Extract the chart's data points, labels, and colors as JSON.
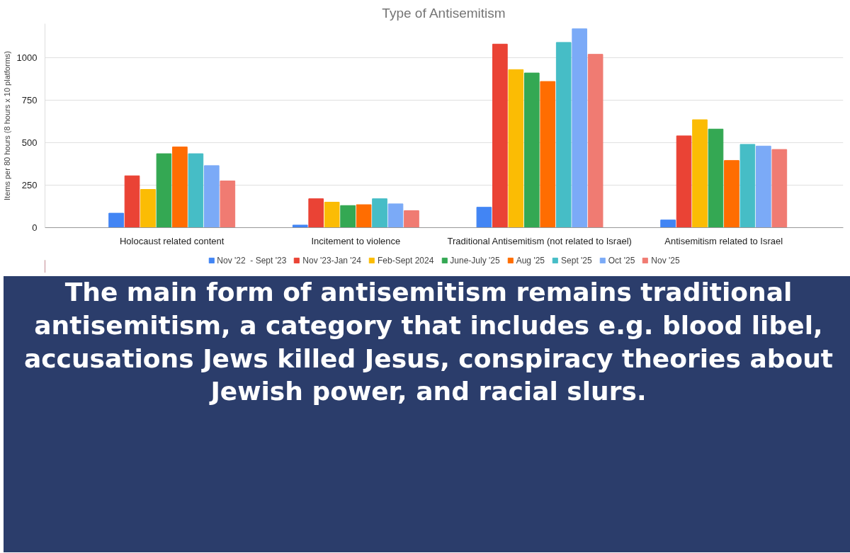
{
  "chart_data": {
    "type": "bar",
    "title": "Type of Antisemitism",
    "ylabel": "Items per 80 hours (8 hours x 10 platforms)",
    "categories": [
      "Holocaust related content",
      "Incitement to violence",
      "Traditional Antisemitism (not related to Israel)",
      "Antisemitism related to Israel"
    ],
    "series": [
      {
        "name": "Nov '22  - Sept '23",
        "color": "#4285f4",
        "values": [
          85,
          15,
          120,
          45
        ]
      },
      {
        "name": "Nov '23-Jan '24",
        "color": "#ea4335",
        "values": [
          305,
          170,
          1080,
          540
        ]
      },
      {
        "name": "Feb-Sept 2024",
        "color": "#fbbc04",
        "values": [
          225,
          150,
          930,
          635
        ]
      },
      {
        "name": "June-July '25",
        "color": "#34a853",
        "values": [
          435,
          130,
          910,
          580
        ]
      },
      {
        "name": "Aug '25",
        "color": "#ff6d01",
        "values": [
          475,
          135,
          860,
          395
        ]
      },
      {
        "name": "Sept '25",
        "color": "#46bdc6",
        "values": [
          435,
          170,
          1090,
          490
        ]
      },
      {
        "name": "Oct '25",
        "color": "#7baaf7",
        "values": [
          365,
          140,
          1170,
          480
        ]
      },
      {
        "name": "Nov '25",
        "color": "#f07b72",
        "values": [
          275,
          100,
          1020,
          460
        ]
      }
    ],
    "ylim": [
      0,
      1200
    ],
    "yticks": [
      0,
      250,
      500,
      750,
      1000
    ],
    "grid": "y",
    "legend": "bottom",
    "annotations": [
      "The main form of antisemitism remains traditional antisemitism, a category that includes e.g. blood libel, accusations Jews killed Jesus, conspiracy theories about Jewish power, and racial slurs."
    ]
  }
}
